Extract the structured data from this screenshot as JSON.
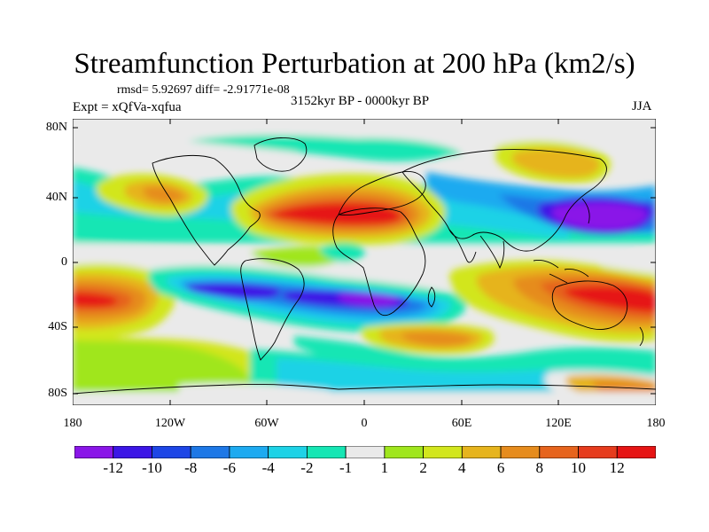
{
  "title": "Streamfunction Perturbation at 200 hPa (km2/s)",
  "stats_text": "rmsd= 5.92697 diff= -2.91771e-08",
  "period": "3152kyr BP - 0000kyr BP",
  "experiment": "Expt = xQfVa-xqfua",
  "season": "JJA",
  "lat_labels": [
    "80N",
    "40N",
    "0",
    "40S",
    "80S"
  ],
  "lon_labels": [
    "180",
    "120W",
    "60W",
    "0",
    "60E",
    "120E",
    "180"
  ],
  "colorbar": {
    "labels": [
      "-12",
      "-10",
      "-8",
      "-6",
      "-4",
      "-2",
      "-1",
      "1",
      "2",
      "4",
      "6",
      "8",
      "10",
      "12"
    ],
    "colors": [
      "#8a16e8",
      "#3c16e6",
      "#1e46e6",
      "#1e78e6",
      "#1eaaf0",
      "#1ed2e6",
      "#16e6b4",
      "#eaeaea",
      "#a0e61e",
      "#d2e61e",
      "#e6b41e",
      "#e68c1e",
      "#e6641e",
      "#e63c1e",
      "#e61414"
    ]
  },
  "colors": {
    "land_line": "#000000",
    "background": "#ffffff"
  }
}
